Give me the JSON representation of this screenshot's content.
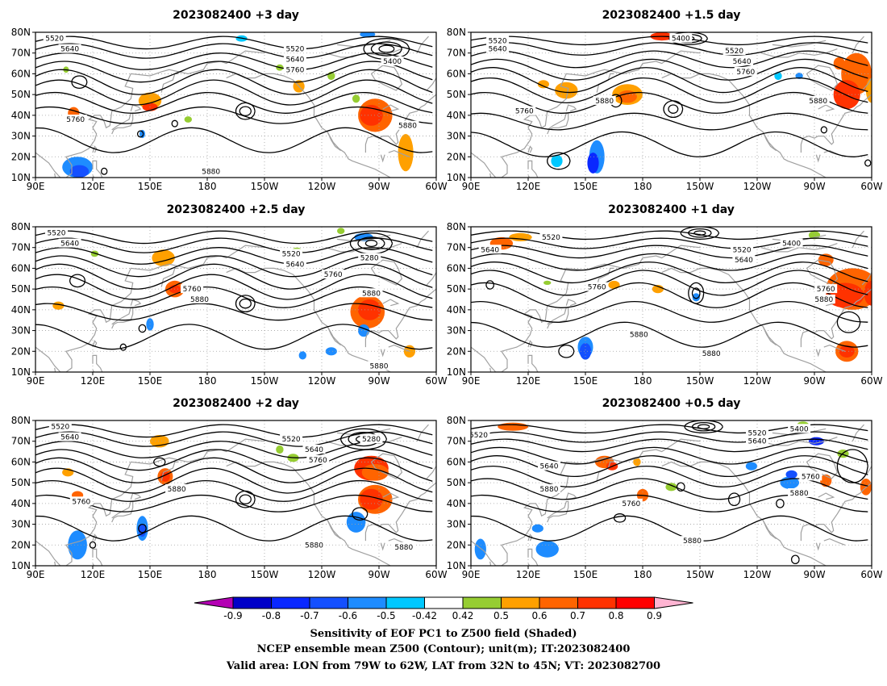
{
  "panels": [
    {
      "id": "p1",
      "title": "2023082400 +3 day",
      "labels": [
        {
          "t": "5520",
          "lon": 100,
          "lat": 77
        },
        {
          "t": "5640",
          "lon": 108,
          "lat": 72
        },
        {
          "t": "5760",
          "lon": 111,
          "lat": 38
        },
        {
          "t": "5880",
          "lon": 182,
          "lat": 13
        },
        {
          "t": "5520",
          "lon": 226,
          "lat": 72
        },
        {
          "t": "5640",
          "lon": 226,
          "lat": 67
        },
        {
          "t": "5760",
          "lon": 226,
          "lat": 62
        },
        {
          "t": "5400",
          "lon": 277,
          "lat": 66
        },
        {
          "t": "5880",
          "lon": 285,
          "lat": 35
        }
      ]
    },
    {
      "id": "p2",
      "title": "2023082400 +1.5 day",
      "labels": [
        {
          "t": "5520",
          "lon": 104,
          "lat": 76
        },
        {
          "t": "5640",
          "lon": 104,
          "lat": 72
        },
        {
          "t": "5400",
          "lon": 200,
          "lat": 77
        },
        {
          "t": "5520",
          "lon": 228,
          "lat": 71
        },
        {
          "t": "5640",
          "lon": 232,
          "lat": 66
        },
        {
          "t": "5760",
          "lon": 234,
          "lat": 61
        },
        {
          "t": "5880",
          "lon": 160,
          "lat": 47
        },
        {
          "t": "5760",
          "lon": 118,
          "lat": 42
        },
        {
          "t": "5880",
          "lon": 272,
          "lat": 47
        }
      ]
    },
    {
      "id": "p3",
      "title": "2023082400 +2.5 day",
      "labels": [
        {
          "t": "5520",
          "lon": 101,
          "lat": 77
        },
        {
          "t": "5640",
          "lon": 108,
          "lat": 72
        },
        {
          "t": "5520",
          "lon": 224,
          "lat": 67
        },
        {
          "t": "5640",
          "lon": 226,
          "lat": 62
        },
        {
          "t": "5280",
          "lon": 265,
          "lat": 65
        },
        {
          "t": "5760",
          "lon": 172,
          "lat": 50
        },
        {
          "t": "5880",
          "lon": 176,
          "lat": 45
        },
        {
          "t": "5760",
          "lon": 246,
          "lat": 57
        },
        {
          "t": "5880",
          "lon": 266,
          "lat": 48
        },
        {
          "t": "5880",
          "lon": 270,
          "lat": 13
        }
      ]
    },
    {
      "id": "p4",
      "title": "2023082400 +1 day",
      "labels": [
        {
          "t": "5520",
          "lon": 132,
          "lat": 75
        },
        {
          "t": "5640",
          "lon": 100,
          "lat": 69
        },
        {
          "t": "5520",
          "lon": 232,
          "lat": 69
        },
        {
          "t": "5640",
          "lon": 233,
          "lat": 64
        },
        {
          "t": "5400",
          "lon": 258,
          "lat": 72
        },
        {
          "t": "5760",
          "lon": 156,
          "lat": 51
        },
        {
          "t": "5760",
          "lon": 276,
          "lat": 50
        },
        {
          "t": "5880",
          "lon": 275,
          "lat": 45
        },
        {
          "t": "5880",
          "lon": 178,
          "lat": 28
        },
        {
          "t": "5880",
          "lon": 216,
          "lat": 19
        }
      ]
    },
    {
      "id": "p5",
      "title": "2023082400 +2 day",
      "labels": [
        {
          "t": "5520",
          "lon": 103,
          "lat": 77
        },
        {
          "t": "5640",
          "lon": 108,
          "lat": 72
        },
        {
          "t": "5520",
          "lon": 224,
          "lat": 71
        },
        {
          "t": "5640",
          "lon": 236,
          "lat": 66
        },
        {
          "t": "5760",
          "lon": 238,
          "lat": 61
        },
        {
          "t": "5280",
          "lon": 266,
          "lat": 71
        },
        {
          "t": "5880",
          "lon": 164,
          "lat": 47
        },
        {
          "t": "5760",
          "lon": 114,
          "lat": 41
        },
        {
          "t": "5880",
          "lon": 236,
          "lat": 20
        },
        {
          "t": "5880",
          "lon": 283,
          "lat": 19
        }
      ]
    },
    {
      "id": "p6",
      "title": "2023082400 +0.5 day",
      "labels": [
        {
          "t": "5520",
          "lon": 94,
          "lat": 73
        },
        {
          "t": "5640",
          "lon": 131,
          "lat": 58
        },
        {
          "t": "5880",
          "lon": 131,
          "lat": 47
        },
        {
          "t": "5760",
          "lon": 174,
          "lat": 40
        },
        {
          "t": "5880",
          "lon": 206,
          "lat": 22
        },
        {
          "t": "5400",
          "lon": 262,
          "lat": 76
        },
        {
          "t": "5520",
          "lon": 240,
          "lat": 74
        },
        {
          "t": "5640",
          "lon": 240,
          "lat": 70
        },
        {
          "t": "5760",
          "lon": 268,
          "lat": 53
        },
        {
          "t": "5880",
          "lon": 262,
          "lat": 45
        }
      ]
    }
  ],
  "lat_ticks": [
    "10N",
    "20N",
    "30N",
    "40N",
    "50N",
    "60N",
    "70N",
    "80N"
  ],
  "lon_ticks": [
    "90E",
    "120E",
    "150E",
    "180",
    "150W",
    "120W",
    "90W",
    "60W"
  ],
  "colorbar": {
    "ticks": [
      "-0.9",
      "-0.8",
      "-0.7",
      "-0.6",
      "-0.5",
      "-0.42",
      "0.42",
      "0.5",
      "0.6",
      "0.7",
      "0.8",
      "0.9"
    ],
    "colors": [
      "#b400b4",
      "#0000c8",
      "#0a28ff",
      "#1450ff",
      "#1e8cff",
      "#00c8ff",
      "#ffffff",
      "#96cd32",
      "#ffa000",
      "#ff6400",
      "#ff3200",
      "#ff0000",
      "#ffb4d2"
    ]
  },
  "caption": [
    "Sensitivity of EOF PC1 to Z500 field (Shaded)",
    "NCEP ensemble mean Z500 (Contour); unit(m); IT:2023082400",
    "Valid area: LON from 79W to 62W, LAT from 32N to 45N; VT: 2023082700"
  ],
  "colors": {
    "contour": "#000000",
    "coast": "#a0a0a0",
    "grid": "#a0a0a0"
  }
}
